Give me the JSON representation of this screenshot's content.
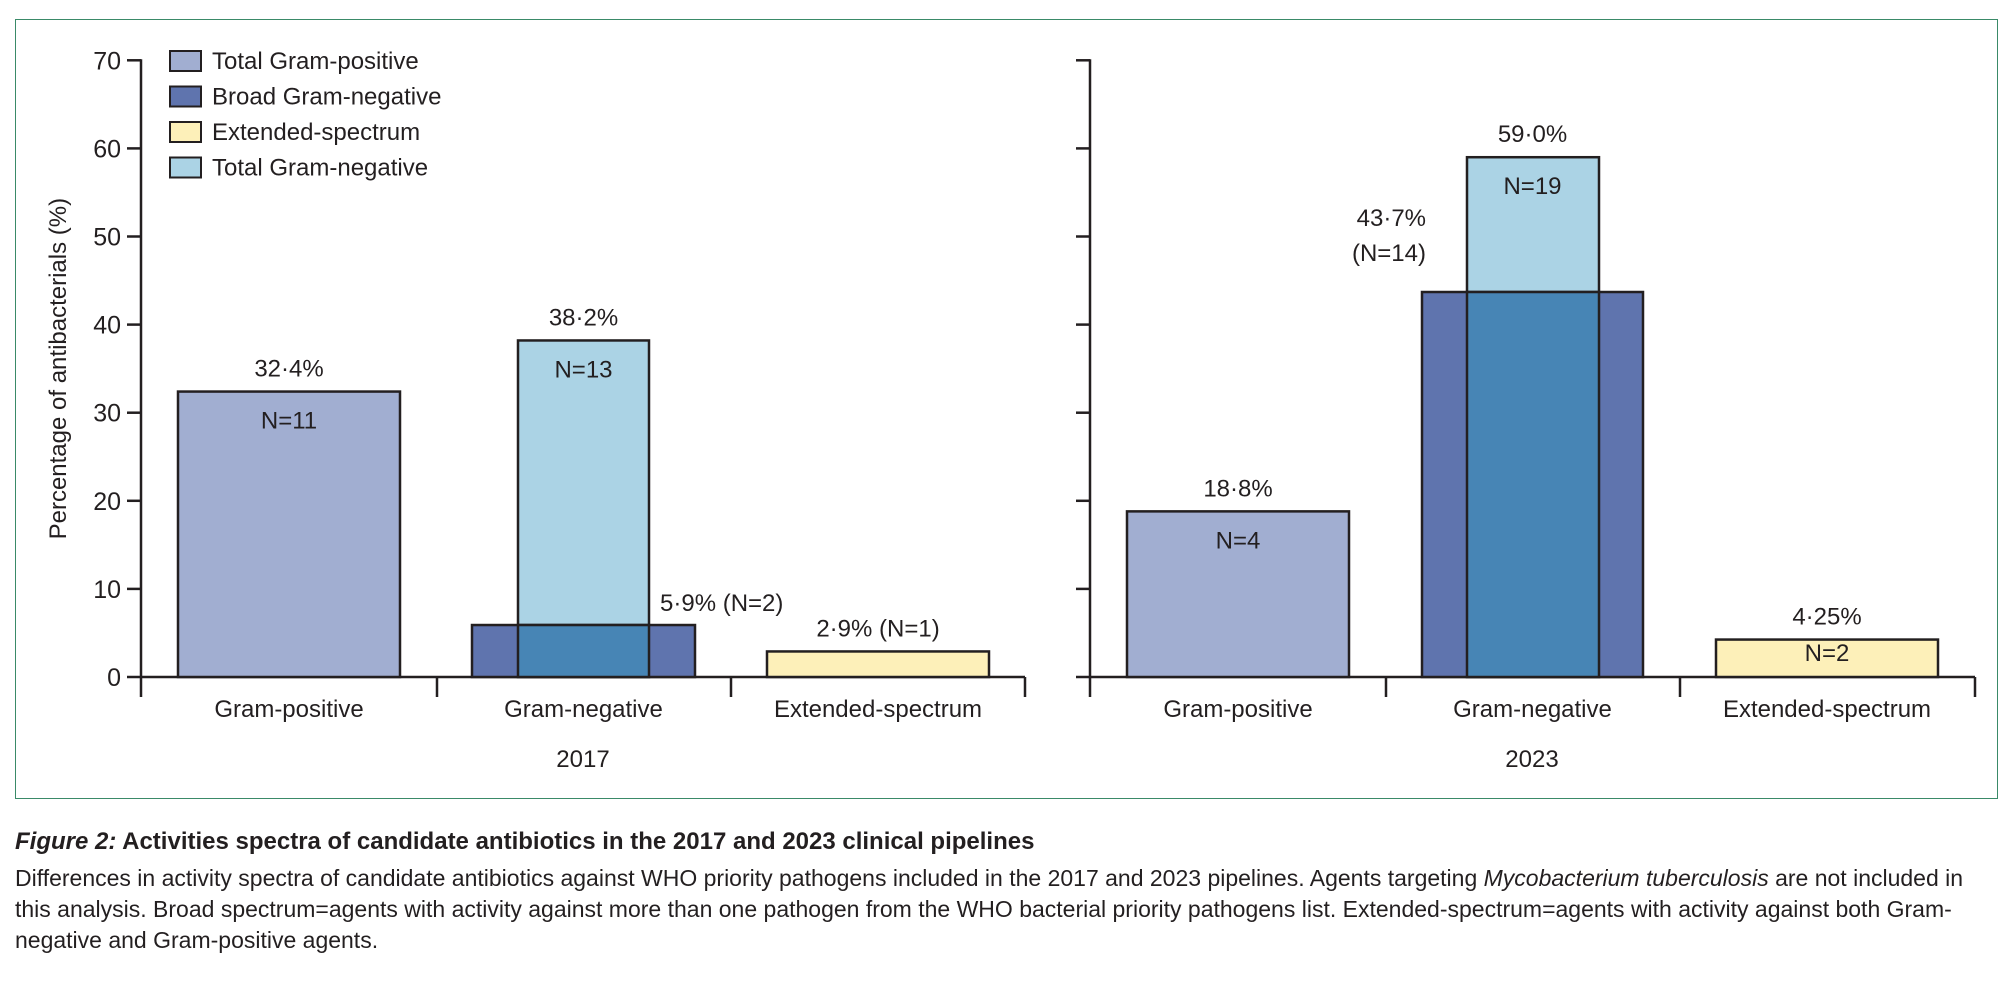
{
  "chart_data": [
    {
      "type": "bar",
      "panel_label": "2017",
      "categories": [
        "Gram-positive",
        "Gram-negative",
        "Extended-spectrum"
      ],
      "ylabel": "Percentage of antibacterials (%)",
      "ylim": [
        0,
        70
      ],
      "yticks": [
        0,
        10,
        20,
        30,
        40,
        50,
        60,
        70
      ],
      "series": [
        {
          "name": "Total Gram-positive",
          "category": "Gram-positive",
          "value": 32.4,
          "label": "32·4%",
          "n_label": "N=11"
        },
        {
          "name": "Broad Gram-negative",
          "category": "Gram-negative",
          "value": 5.9,
          "label": "5·9% (N=2)"
        },
        {
          "name": "Total Gram-negative",
          "category": "Gram-negative",
          "value": 38.2,
          "label": "38·2%",
          "n_label": "N=13"
        },
        {
          "name": "Extended-spectrum",
          "category": "Extended-spectrum",
          "value": 2.9,
          "label": "2·9% (N=1)"
        }
      ]
    },
    {
      "type": "bar",
      "panel_label": "2023",
      "categories": [
        "Gram-positive",
        "Gram-negative",
        "Extended-spectrum"
      ],
      "ylim": [
        0,
        70
      ],
      "yticks": [
        0,
        10,
        20,
        30,
        40,
        50,
        60,
        70
      ],
      "series": [
        {
          "name": "Total Gram-positive",
          "category": "Gram-positive",
          "value": 18.8,
          "label": "18·8%",
          "n_label": "N=4"
        },
        {
          "name": "Broad Gram-negative",
          "category": "Gram-negative",
          "value": 43.7,
          "label": "43·7%",
          "label2": "(N=14)"
        },
        {
          "name": "Total Gram-negative",
          "category": "Gram-negative",
          "value": 59.0,
          "label": "59·0%",
          "n_label": "N=19"
        },
        {
          "name": "Extended-spectrum",
          "category": "Extended-spectrum",
          "value": 4.25,
          "label": "4·25%",
          "n_label": "N=2"
        }
      ]
    }
  ],
  "legend": {
    "placement": "top-left",
    "items": [
      {
        "label": "Total Gram-positive",
        "color": "#a1aed1"
      },
      {
        "label": "Broad Gram-negative",
        "color": "#5f74ae"
      },
      {
        "label": "Extended-spectrum",
        "color": "#fdf0b9"
      },
      {
        "label": "Total Gram-negative",
        "color": "#abd3e5"
      }
    ]
  },
  "colors": {
    "overlap": "#4785b5",
    "frame": "#3a8a68"
  },
  "caption": {
    "figure_label": "Figure 2:",
    "title": "Activities spectra of candidate antibiotics in the 2017 and 2023 clinical pipelines",
    "text_1": "Differences in activity spectra of candidate antibiotics against WHO priority pathogens included in the 2017 and 2023 pipelines. Agents targeting ",
    "text_italic": "Mycobacterium tuberculosis",
    "text_2": " are not included in this analysis. Broad spectrum=agents with activity against more than one pathogen from the WHO bacterial priority pathogens list. Extended-spectrum=agents with activity against both Gram-negative and Gram-positive agents."
  }
}
